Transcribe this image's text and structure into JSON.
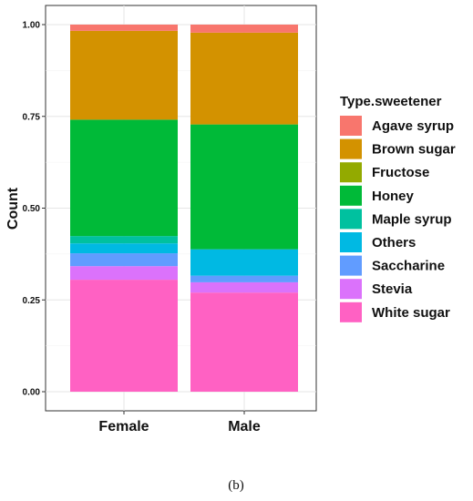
{
  "chart_data": {
    "type": "bar",
    "stacked": true,
    "normalized": true,
    "categories": [
      "Female",
      "Male"
    ],
    "ylabel": "Count",
    "ylim": [
      0,
      1
    ],
    "yticks": [
      "0.00",
      "0.25",
      "0.50",
      "0.75",
      "1.00"
    ],
    "grid": true,
    "legend_title": "Type.sweetener",
    "legend_position": "right",
    "series": [
      {
        "name": "White sugar",
        "color": "#FF61C3",
        "values": [
          0.305,
          0.27
        ]
      },
      {
        "name": "Stevia",
        "color": "#DB72FB",
        "values": [
          0.037,
          0.028
        ]
      },
      {
        "name": "Saccharine",
        "color": "#619CFF",
        "values": [
          0.035,
          0.018
        ]
      },
      {
        "name": "Others",
        "color": "#00B9E3",
        "values": [
          0.027,
          0.072
        ]
      },
      {
        "name": "Maple syrup",
        "color": "#00C19F",
        "values": [
          0.02,
          0.0
        ]
      },
      {
        "name": "Honey",
        "color": "#00BA38",
        "values": [
          0.317,
          0.34
        ]
      },
      {
        "name": "Fructose",
        "color": "#93AA00",
        "values": [
          0.0,
          0.0
        ]
      },
      {
        "name": "Brown sugar",
        "color": "#D39200",
        "values": [
          0.242,
          0.25
        ]
      },
      {
        "name": "Agave syrup",
        "color": "#F8766D",
        "values": [
          0.017,
          0.022
        ]
      }
    ],
    "legend_order": [
      "Agave syrup",
      "Brown sugar",
      "Fructose",
      "Honey",
      "Maple syrup",
      "Others",
      "Saccharine",
      "Stevia",
      "White sugar"
    ]
  },
  "caption": "(b)"
}
